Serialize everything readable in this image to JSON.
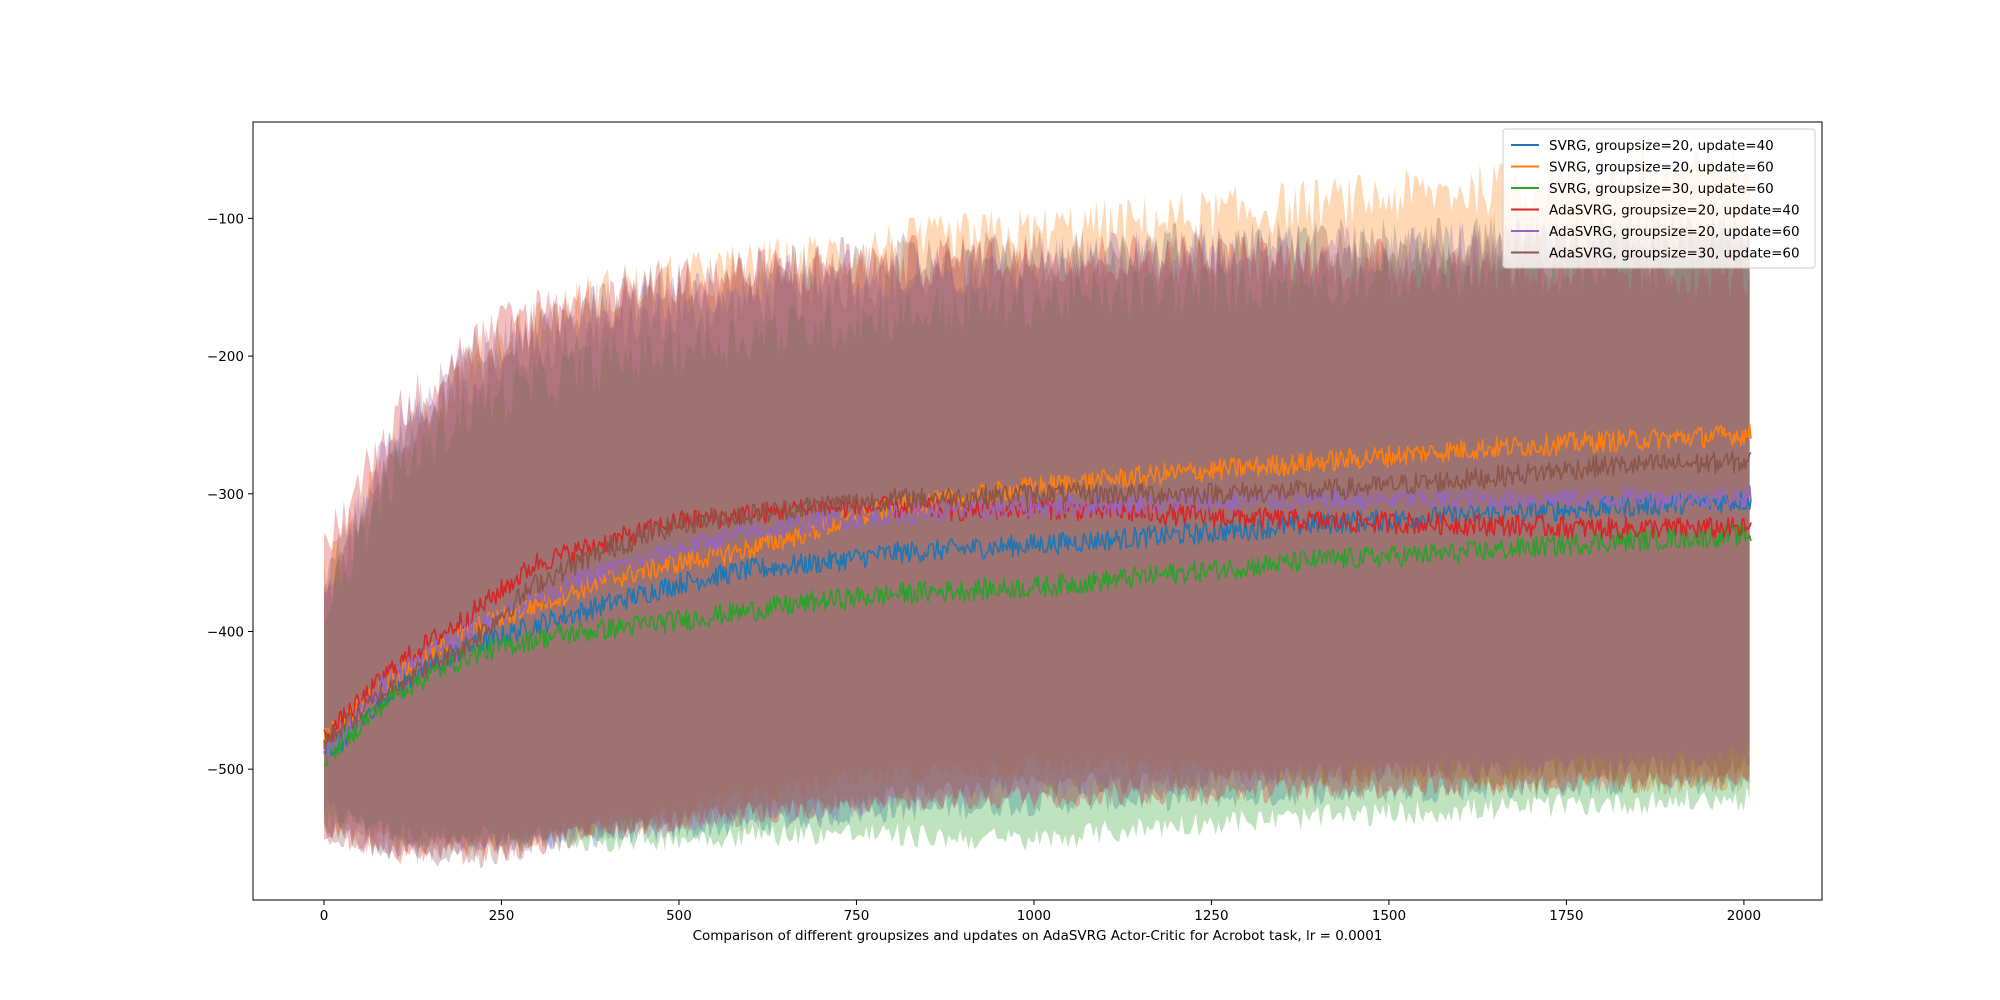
{
  "chart_data": {
    "type": "line",
    "title": "",
    "xlabel": "Comparison of different groupsizes and updates on AdaSVRG Actor-Critic for Acrobot task, lr = 0.0001",
    "ylabel": "",
    "xlim": [
      -100,
      2110
    ],
    "ylim": [
      -595,
      -30
    ],
    "x_ticks": [
      0,
      250,
      500,
      750,
      1000,
      1250,
      1500,
      1750,
      2000
    ],
    "y_ticks": [
      -100,
      -200,
      -300,
      -400,
      -500
    ],
    "x_tick_labels": [
      "0",
      "250",
      "500",
      "750",
      "1000",
      "1250",
      "1500",
      "1750",
      "2000"
    ],
    "y_tick_labels": [
      "−100",
      "−200",
      "−300",
      "−400",
      "−500"
    ],
    "grid": false,
    "legend_position": "top-right",
    "series": [
      {
        "name": "SVRG, groupsize=20, update=40",
        "color": "#1f77b4",
        "x": [
          0,
          100,
          200,
          300,
          400,
          500,
          600,
          700,
          800,
          900,
          1000,
          1200,
          1400,
          1600,
          1800,
          2000
        ],
        "mean": [
          -492,
          -440,
          -412,
          -395,
          -380,
          -365,
          -355,
          -350,
          -343,
          -340,
          -337,
          -330,
          -322,
          -316,
          -310,
          -305
        ],
        "upper": [
          -380,
          -270,
          -220,
          -195,
          -180,
          -170,
          -160,
          -152,
          -145,
          -140,
          -135,
          -128,
          -122,
          -118,
          -115,
          -112
        ],
        "lower": [
          -530,
          -545,
          -555,
          -552,
          -548,
          -545,
          -540,
          -535,
          -530,
          -528,
          -525,
          -522,
          -518,
          -515,
          -512,
          -510
        ]
      },
      {
        "name": "SVRG, groupsize=20, update=60",
        "color": "#ff7f0e",
        "x": [
          0,
          100,
          200,
          300,
          400,
          500,
          600,
          700,
          800,
          900,
          1000,
          1200,
          1400,
          1600,
          1800,
          2000
        ],
        "mean": [
          -478,
          -432,
          -400,
          -380,
          -362,
          -350,
          -340,
          -325,
          -310,
          -303,
          -295,
          -285,
          -277,
          -268,
          -262,
          -257
        ],
        "upper": [
          -360,
          -270,
          -210,
          -175,
          -155,
          -145,
          -135,
          -128,
          -120,
          -115,
          -110,
          -100,
          -90,
          -80,
          -72,
          -65
        ],
        "lower": [
          -540,
          -555,
          -560,
          -550,
          -540,
          -530,
          -520,
          -512,
          -505,
          -500,
          -498,
          -500,
          -505,
          -508,
          -510,
          -510
        ]
      },
      {
        "name": "SVRG, groupsize=30, update=60",
        "color": "#2ca02c",
        "x": [
          0,
          100,
          200,
          300,
          400,
          500,
          600,
          700,
          800,
          900,
          1000,
          1200,
          1400,
          1600,
          1800,
          2000
        ],
        "mean": [
          -492,
          -445,
          -418,
          -405,
          -398,
          -392,
          -385,
          -378,
          -373,
          -370,
          -368,
          -358,
          -348,
          -343,
          -335,
          -330
        ],
        "upper": [
          -380,
          -285,
          -240,
          -220,
          -205,
          -195,
          -185,
          -178,
          -170,
          -165,
          -160,
          -152,
          -145,
          -140,
          -135,
          -130
        ],
        "lower": [
          -535,
          -548,
          -550,
          -550,
          -552,
          -550,
          -548,
          -546,
          -548,
          -550,
          -552,
          -540,
          -535,
          -530,
          -525,
          -522
        ]
      },
      {
        "name": "AdaSVRG, groupsize=20, update=40",
        "color": "#d62728",
        "x": [
          0,
          100,
          200,
          300,
          400,
          500,
          600,
          700,
          800,
          900,
          1000,
          1200,
          1400,
          1600,
          1800,
          2000
        ],
        "mean": [
          -478,
          -425,
          -390,
          -350,
          -335,
          -320,
          -315,
          -310,
          -310,
          -312,
          -310,
          -315,
          -320,
          -322,
          -325,
          -325
        ],
        "upper": [
          -340,
          -245,
          -195,
          -165,
          -155,
          -145,
          -140,
          -135,
          -132,
          -130,
          -128,
          -130,
          -132,
          -135,
          -138,
          -140
        ],
        "lower": [
          -545,
          -560,
          -562,
          -555,
          -545,
          -538,
          -532,
          -528,
          -525,
          -522,
          -520,
          -518,
          -515,
          -512,
          -510,
          -508
        ]
      },
      {
        "name": "AdaSVRG, groupsize=20, update=60",
        "color": "#9467bd",
        "x": [
          0,
          100,
          200,
          300,
          400,
          500,
          600,
          700,
          800,
          900,
          1000,
          1200,
          1400,
          1600,
          1800,
          2000
        ],
        "mean": [
          -488,
          -430,
          -400,
          -375,
          -355,
          -340,
          -328,
          -320,
          -316,
          -312,
          -310,
          -306,
          -305,
          -304,
          -303,
          -302
        ],
        "upper": [
          -370,
          -255,
          -205,
          -180,
          -165,
          -155,
          -148,
          -142,
          -138,
          -135,
          -132,
          -128,
          -125,
          -122,
          -120,
          -118
        ],
        "lower": [
          -545,
          -558,
          -558,
          -552,
          -545,
          -540,
          -535,
          -530,
          -525,
          -520,
          -515,
          -510,
          -505,
          -500,
          -495,
          -490
        ]
      },
      {
        "name": "AdaSVRG, groupsize=30, update=60",
        "color": "#8c564b",
        "x": [
          0,
          100,
          200,
          300,
          400,
          500,
          600,
          700,
          800,
          900,
          1000,
          1200,
          1400,
          1600,
          1800,
          2000
        ],
        "mean": [
          -480,
          -438,
          -410,
          -365,
          -340,
          -322,
          -315,
          -308,
          -304,
          -302,
          -300,
          -300,
          -298,
          -290,
          -280,
          -277
        ],
        "upper": [
          -365,
          -265,
          -200,
          -172,
          -160,
          -150,
          -142,
          -135,
          -130,
          -128,
          -125,
          -122,
          -120,
          -118,
          -115,
          -112
        ],
        "lower": [
          -545,
          -560,
          -565,
          -555,
          -545,
          -538,
          -532,
          -526,
          -520,
          -515,
          -512,
          -508,
          -505,
          -502,
          -500,
          -498
        ]
      }
    ]
  }
}
